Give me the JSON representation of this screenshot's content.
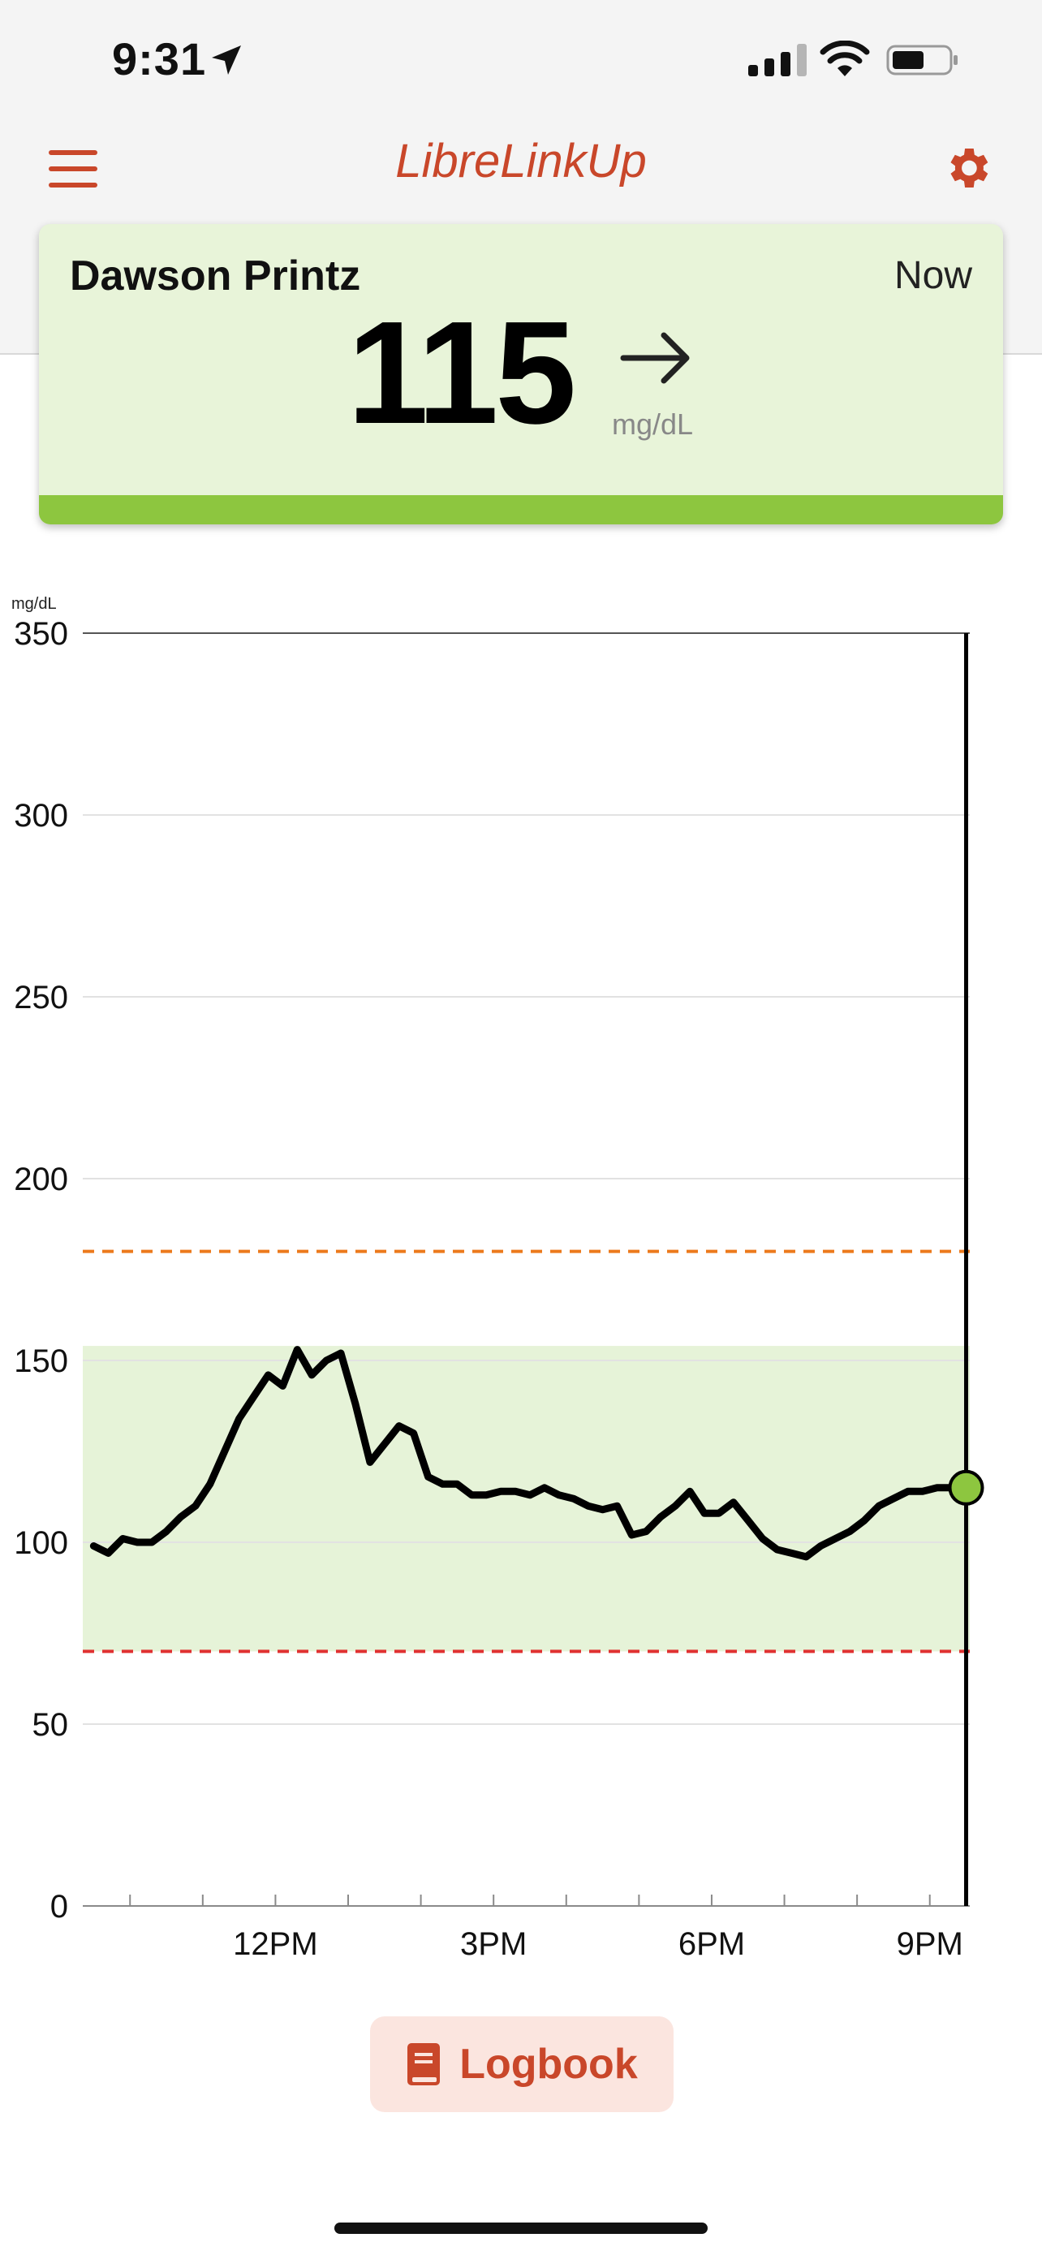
{
  "status_bar": {
    "time": "9:31"
  },
  "header": {
    "title": "LibreLinkUp"
  },
  "card": {
    "patient_name": "Dawson Printz",
    "timestamp": "Now",
    "glucose_value": "115",
    "unit": "mg/dL",
    "trend": "steady-right-arrow",
    "status_color": "#8dc63f"
  },
  "chart_data": {
    "type": "line",
    "ylabel": "mg/dL",
    "ylim": [
      0,
      350
    ],
    "yticks": [
      "350",
      "300",
      "250",
      "200",
      "150",
      "100",
      "50",
      "0"
    ],
    "xticks": [
      "12PM",
      "3PM",
      "6PM",
      "9PM"
    ],
    "target_range": [
      70,
      154
    ],
    "high_threshold": 180,
    "low_threshold": 70,
    "grid": true,
    "colors": {
      "line": "#000000",
      "target_fill": "#e6f3d8",
      "high_line": "#ec7a1c",
      "low_line": "#e03131",
      "current_point": "#8dc63f"
    },
    "series": [
      {
        "x": [
          9.5,
          9.7,
          9.9,
          10.1,
          10.3,
          10.5,
          10.7,
          10.9,
          11.1,
          11.3,
          11.5,
          11.7,
          11.9,
          12.1,
          12.3,
          12.5,
          12.7,
          12.9,
          13.1,
          13.3,
          13.5,
          13.7,
          13.9,
          14.1,
          14.3,
          14.5,
          14.7,
          14.9,
          15.1,
          15.3,
          15.5,
          15.7,
          15.9,
          16.1,
          16.3,
          16.5,
          16.7,
          16.9,
          17.1,
          17.3,
          17.5,
          17.7,
          17.9,
          18.1,
          18.3,
          18.5,
          18.7,
          18.9,
          19.1,
          19.3,
          19.5,
          19.7,
          19.9,
          20.1,
          20.3,
          20.5,
          20.7,
          20.9,
          21.1,
          21.3,
          21.5
        ],
        "y": [
          99,
          97,
          101,
          100,
          100,
          103,
          107,
          110,
          116,
          125,
          134,
          140,
          146,
          143,
          153,
          146,
          150,
          152,
          138,
          122,
          127,
          132,
          130,
          118,
          116,
          116,
          113,
          113,
          114,
          114,
          113,
          115,
          113,
          112,
          110,
          109,
          110,
          102,
          103,
          107,
          110,
          114,
          108,
          108,
          111,
          106,
          101,
          98,
          97,
          96,
          99,
          101,
          103,
          106,
          110,
          112,
          114,
          114,
          115,
          115,
          115
        ]
      }
    ],
    "current": {
      "x": 21.5,
      "y": 115
    }
  },
  "logbook": {
    "label": "Logbook"
  }
}
